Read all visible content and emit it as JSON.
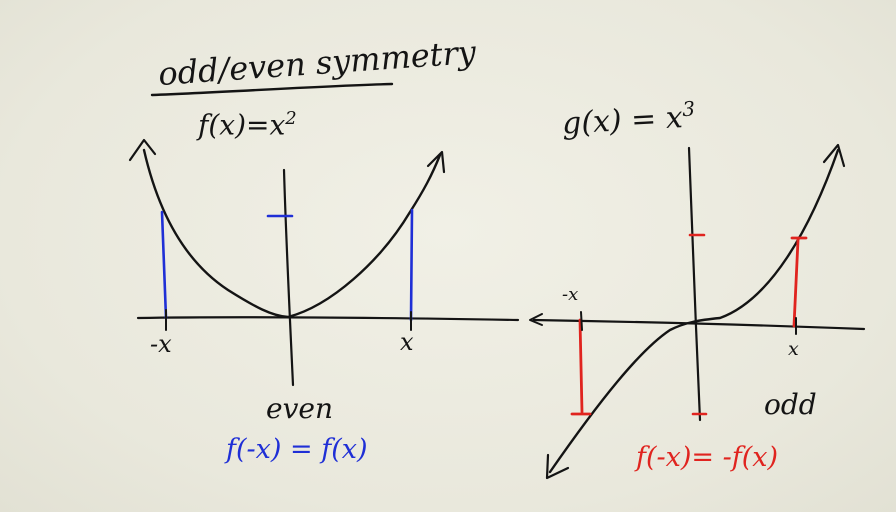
{
  "title": "odd/even symmetry",
  "left": {
    "function_label": "f(x)=x",
    "function_exponent": "2",
    "x_pos_label": "x",
    "x_neg_label": "-x",
    "type_label": "even",
    "identity": "f(-x) = f(x)"
  },
  "right": {
    "function_label": "g(x) = x",
    "function_exponent": "3",
    "x_pos_label": "x",
    "x_neg_label": "-x",
    "type_label": "odd",
    "identity": "f(-x)= -f(x)"
  },
  "colors": {
    "ink": "#141414",
    "even_marks": "#1f2fd6",
    "odd_marks": "#e0241f",
    "board": "#ecebe0"
  }
}
